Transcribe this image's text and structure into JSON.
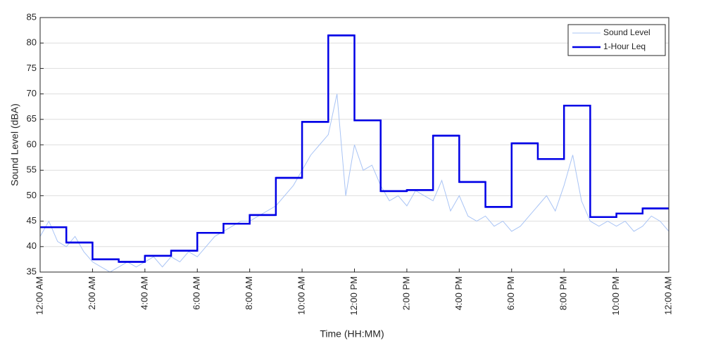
{
  "chart_data": {
    "type": "line",
    "xlabel": "Time (HH:MM)",
    "ylabel": "Sound Level (dBA)",
    "xlim": [
      0,
      1440
    ],
    "xticks": [
      {
        "value": 0,
        "label": "12:00 AM"
      },
      {
        "value": 120,
        "label": "2:00 AM"
      },
      {
        "value": 240,
        "label": "4:00 AM"
      },
      {
        "value": 360,
        "label": "6:00 AM"
      },
      {
        "value": 480,
        "label": "8:00 AM"
      },
      {
        "value": 600,
        "label": "10:00 AM"
      },
      {
        "value": 720,
        "label": "12:00 PM"
      },
      {
        "value": 840,
        "label": "2:00 PM"
      },
      {
        "value": 960,
        "label": "4:00 PM"
      },
      {
        "value": 1080,
        "label": "6:00 PM"
      },
      {
        "value": 1200,
        "label": "8:00 PM"
      },
      {
        "value": 1320,
        "label": "10:00 PM"
      },
      {
        "value": 1440,
        "label": "12:00 AM"
      }
    ],
    "ylim": [
      35,
      85
    ],
    "yticks": [
      35,
      40,
      45,
      50,
      55,
      60,
      65,
      70,
      75,
      80,
      85
    ],
    "grid": true,
    "legend": "upper right",
    "series": [
      {
        "name": "Sound Level",
        "color": "#a9c4f5",
        "style": "line",
        "x": [
          0,
          20,
          40,
          60,
          80,
          100,
          120,
          140,
          160,
          180,
          200,
          220,
          240,
          260,
          280,
          300,
          320,
          340,
          360,
          380,
          400,
          420,
          440,
          460,
          480,
          500,
          520,
          540,
          560,
          580,
          600,
          620,
          640,
          660,
          680,
          700,
          720,
          740,
          760,
          780,
          800,
          820,
          840,
          860,
          880,
          900,
          920,
          940,
          960,
          980,
          1000,
          1020,
          1040,
          1060,
          1080,
          1100,
          1120,
          1140,
          1160,
          1180,
          1200,
          1220,
          1240,
          1260,
          1280,
          1300,
          1320,
          1340,
          1360,
          1380,
          1400,
          1420,
          1440
        ],
        "values": [
          42,
          45,
          41,
          40,
          42,
          39,
          37,
          36,
          35,
          36,
          37,
          36,
          37,
          38,
          36,
          38,
          37,
          39,
          38,
          40,
          42,
          43,
          44,
          45,
          45,
          46,
          47,
          48,
          50,
          52,
          55,
          58,
          60,
          62,
          70,
          50,
          60,
          55,
          56,
          52,
          49,
          50,
          48,
          51,
          50,
          49,
          53,
          47,
          50,
          46,
          45,
          46,
          44,
          45,
          43,
          44,
          46,
          48,
          50,
          47,
          52,
          58,
          49,
          45,
          44,
          45,
          44,
          45,
          43,
          44,
          46,
          45,
          43
        ]
      },
      {
        "name": "1-Hour Leq",
        "color": "#0000e6",
        "style": "step",
        "x": [
          0,
          60,
          120,
          180,
          240,
          300,
          360,
          420,
          480,
          540,
          600,
          660,
          720,
          780,
          840,
          900,
          960,
          1020,
          1080,
          1140,
          1200,
          1260,
          1320,
          1380
        ],
        "values": [
          43.8,
          40.8,
          37.5,
          37.0,
          38.2,
          39.2,
          42.7,
          44.5,
          46.2,
          53.5,
          64.5,
          81.5,
          64.8,
          50.9,
          51.1,
          61.8,
          52.7,
          47.8,
          60.3,
          57.2,
          67.7,
          45.8,
          46.5,
          47.5
        ]
      }
    ]
  }
}
